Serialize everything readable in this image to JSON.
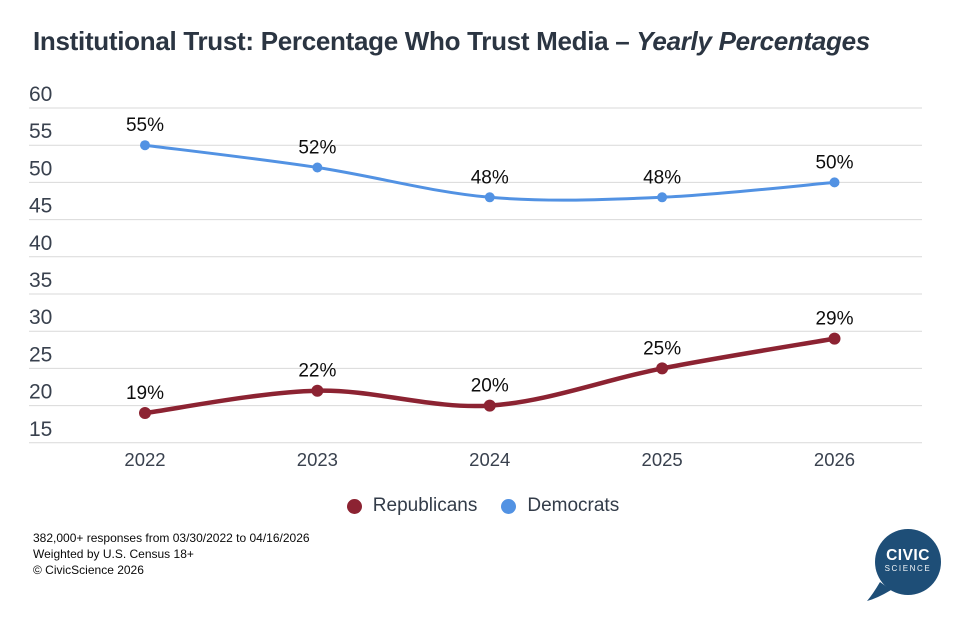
{
  "title": {
    "main": "Institutional Trust: Percentage Who Trust Media",
    "separator": "–",
    "emphasis": "Yearly Percentages"
  },
  "chart_data": {
    "type": "line",
    "categories": [
      "2022",
      "2023",
      "2024",
      "2025",
      "2026"
    ],
    "series": [
      {
        "name": "Republicans",
        "color": "#8c2332",
        "values": [
          19,
          22,
          20,
          25,
          29
        ],
        "labels": [
          "19%",
          "22%",
          "20%",
          "25%",
          "29%"
        ]
      },
      {
        "name": "Democrats",
        "color": "#5292e3",
        "values": [
          55,
          52,
          48,
          48,
          50
        ],
        "labels": [
          "55%",
          "52%",
          "48%",
          "48%",
          "50%"
        ]
      }
    ],
    "yticks": [
      "60",
      "55",
      "50",
      "45",
      "40",
      "35",
      "30",
      "25",
      "20",
      "15"
    ],
    "ylim": [
      15,
      60
    ],
    "grid": true,
    "gridline_color": "#d9d9d9",
    "axis_label_color": "#39414e",
    "data_label_color": "#0d0d0d",
    "legend_position": "bottom-center",
    "xlabel": "",
    "ylabel": ""
  },
  "legend": [
    {
      "label": "Republicans",
      "color": "#8c2332"
    },
    {
      "label": "Democrats",
      "color": "#5292e3"
    }
  ],
  "footer": {
    "line1": "382,000+ responses from 03/30/2022 to 04/16/2026",
    "line2": "Weighted by U.S. Census 18+",
    "line3": "© CivicScience 2026"
  },
  "logo": {
    "line1": "CIVIC",
    "line2": "SCIENCE",
    "color": "#1e4e77"
  }
}
